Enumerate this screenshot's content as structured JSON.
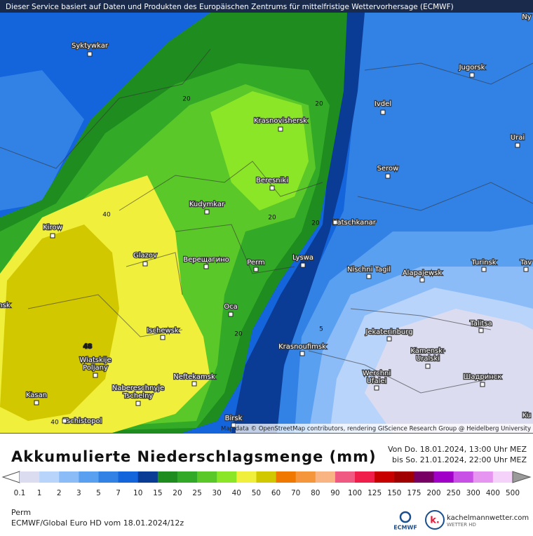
{
  "banner": "Dieser Service basiert auf Daten und Produkten des Europäischen Zentrums für mittelfristige Wettervorhersage (ECMWF)",
  "map": {
    "cities": [
      "Syktywkar",
      "Jugorsk",
      "Ivdel",
      "Krasnovishersk",
      "Urai",
      "Serow",
      "Beresniki",
      "Kudymkar",
      "Katschkanar",
      "Kirow",
      "Glazov",
      "Верещагино",
      "Perm",
      "Lyswa",
      "Nischni Tagil",
      "Alapajewsk",
      "Turinsk",
      "Tav",
      "Oca",
      "Ischewsk",
      "Krasnoufimsk",
      "Jekaterinburg",
      "Talitsa",
      [
        "Kamensk-",
        "Uralski"
      ],
      [
        "Wiatskije",
        "Poljany"
      ],
      "Neftekamsk",
      [
        "Werchni",
        "Ufalei"
      ],
      "Шадринск",
      [
        "Nabereschnyje",
        "Tschelny"
      ],
      "Kasan",
      "Tschistopol",
      "Birsk",
      "Ny",
      "nsk",
      "Ku"
    ],
    "contour_labels": [
      20,
      20,
      40,
      20,
      20,
      5,
      20,
      48,
      40
    ],
    "attribution": "Map data © OpenStreetMap contributors, rendering GIScience Research Group @ Heidelberg University"
  },
  "title": "Akkumulierte Niederschlagsmenge (mm)",
  "period": [
    "Von Do. 18.01.2024, 13:00 Uhr MEZ",
    "bis So. 21.01.2024, 22:00 Uhr MEZ"
  ],
  "legend": {
    "values": [
      0.1,
      1,
      2,
      3,
      5,
      7,
      10,
      15,
      20,
      25,
      30,
      40,
      50,
      60,
      70,
      80,
      90,
      100,
      125,
      150,
      175,
      200,
      250,
      300,
      400,
      500
    ],
    "colors": [
      "#dcdcf0",
      "#b8d4fa",
      "#8cbcf8",
      "#5aa0f0",
      "#3282e6",
      "#1464dc",
      "#0a3c96",
      "#1e8c1e",
      "#32aa28",
      "#5ac828",
      "#8ce628",
      "#f0f03c",
      "#d2c800",
      "#f07800",
      "#f5963c",
      "#f8b482",
      "#f05a82",
      "#f01e4b",
      "#c80000",
      "#a00000",
      "#780064",
      "#a000c8",
      "#c850e6",
      "#e696f0",
      "#f5d2fa"
    ]
  },
  "location": "Perm",
  "model": "ECMWF/Global Euro HD vom 18.01.2024/12z",
  "logos": [
    "ECMWF",
    "kachelmannwetter.com",
    "WETTER HD"
  ]
}
